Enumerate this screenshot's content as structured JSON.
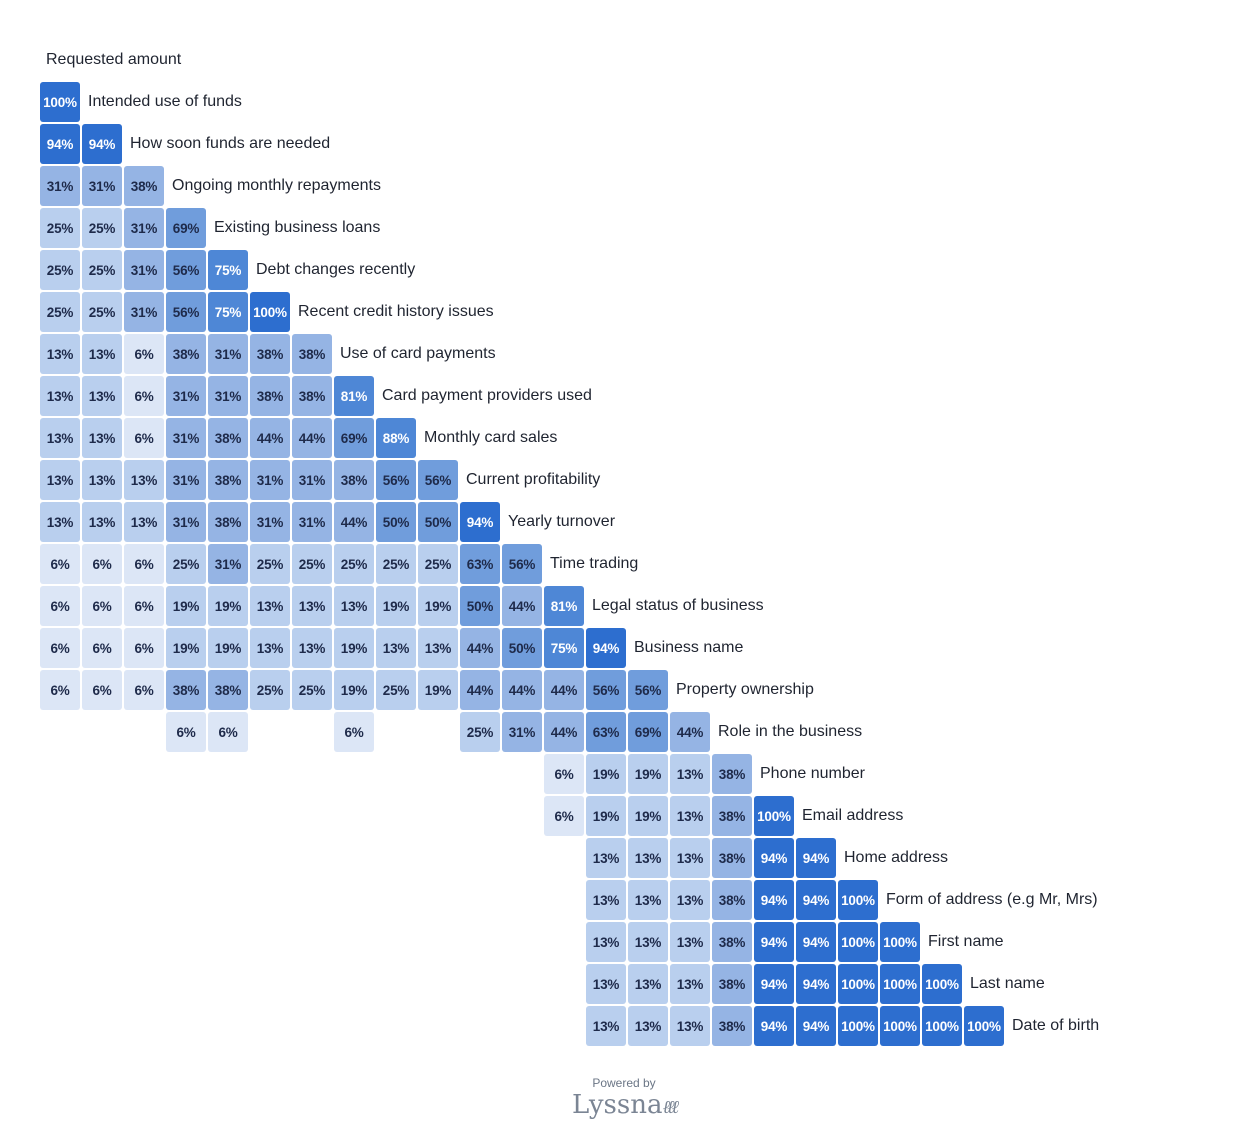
{
  "chart_data": {
    "type": "heatmap",
    "title": "",
    "unit": "%",
    "rows": [
      {
        "label": "Requested amount",
        "cells": []
      },
      {
        "label": "Intended use of funds",
        "cells": [
          100
        ]
      },
      {
        "label": "How soon funds are needed",
        "cells": [
          94,
          94
        ]
      },
      {
        "label": "Ongoing monthly repayments",
        "cells": [
          31,
          31,
          38
        ]
      },
      {
        "label": "Existing business loans",
        "cells": [
          25,
          25,
          31,
          69
        ]
      },
      {
        "label": "Debt changes recently",
        "cells": [
          25,
          25,
          31,
          56,
          75
        ]
      },
      {
        "label": "Recent credit history issues",
        "cells": [
          25,
          25,
          31,
          56,
          75,
          100
        ]
      },
      {
        "label": "Use of card payments",
        "cells": [
          13,
          13,
          6,
          38,
          31,
          38,
          38
        ]
      },
      {
        "label": "Card payment providers used",
        "cells": [
          13,
          13,
          6,
          31,
          31,
          38,
          38,
          81
        ]
      },
      {
        "label": "Monthly card sales",
        "cells": [
          13,
          13,
          6,
          31,
          38,
          44,
          44,
          69,
          88
        ]
      },
      {
        "label": "Current profitability",
        "cells": [
          13,
          13,
          13,
          31,
          38,
          31,
          31,
          38,
          56,
          56
        ]
      },
      {
        "label": "Yearly turnover",
        "cells": [
          13,
          13,
          13,
          31,
          38,
          31,
          31,
          44,
          50,
          50,
          94
        ]
      },
      {
        "label": "Time trading",
        "cells": [
          6,
          6,
          6,
          25,
          31,
          25,
          25,
          25,
          25,
          25,
          63,
          56
        ]
      },
      {
        "label": "Legal status of business",
        "cells": [
          6,
          6,
          6,
          19,
          19,
          13,
          13,
          13,
          19,
          19,
          50,
          44,
          81
        ]
      },
      {
        "label": "Business name",
        "cells": [
          6,
          6,
          6,
          19,
          19,
          13,
          13,
          19,
          13,
          13,
          44,
          50,
          75,
          94
        ]
      },
      {
        "label": "Property ownership",
        "cells": [
          6,
          6,
          6,
          38,
          38,
          25,
          25,
          19,
          25,
          19,
          44,
          44,
          44,
          56,
          56
        ]
      },
      {
        "label": "Role in the business",
        "cells": [
          null,
          null,
          null,
          6,
          6,
          null,
          null,
          6,
          null,
          null,
          25,
          31,
          44,
          63,
          69,
          44
        ]
      },
      {
        "label": "Phone number",
        "cells": [
          null,
          null,
          null,
          null,
          null,
          null,
          null,
          null,
          null,
          null,
          null,
          null,
          6,
          19,
          19,
          13,
          38
        ]
      },
      {
        "label": "Email address",
        "cells": [
          null,
          null,
          null,
          null,
          null,
          null,
          null,
          null,
          null,
          null,
          null,
          null,
          6,
          19,
          19,
          13,
          38,
          100
        ]
      },
      {
        "label": "Home address",
        "cells": [
          null,
          null,
          null,
          null,
          null,
          null,
          null,
          null,
          null,
          null,
          null,
          null,
          null,
          13,
          13,
          13,
          38,
          94,
          94
        ]
      },
      {
        "label": "Form of address (e.g Mr, Mrs)",
        "cells": [
          null,
          null,
          null,
          null,
          null,
          null,
          null,
          null,
          null,
          null,
          null,
          null,
          null,
          13,
          13,
          13,
          38,
          94,
          94,
          100
        ]
      },
      {
        "label": "First name",
        "cells": [
          null,
          null,
          null,
          null,
          null,
          null,
          null,
          null,
          null,
          null,
          null,
          null,
          null,
          13,
          13,
          13,
          38,
          94,
          94,
          100,
          100
        ]
      },
      {
        "label": "Last name",
        "cells": [
          null,
          null,
          null,
          null,
          null,
          null,
          null,
          null,
          null,
          null,
          null,
          null,
          null,
          13,
          13,
          13,
          38,
          94,
          94,
          100,
          100,
          100
        ]
      },
      {
        "label": "Date of birth",
        "cells": [
          null,
          null,
          null,
          null,
          null,
          null,
          null,
          null,
          null,
          null,
          null,
          null,
          null,
          13,
          13,
          13,
          38,
          94,
          94,
          100,
          100,
          100,
          100
        ]
      }
    ],
    "color_scale": [
      "#dce6f6",
      "#b9cfee",
      "#95b4e4",
      "#709ddc",
      "#4e87d6",
      "#2d6ecf"
    ]
  },
  "footer": {
    "powered_by": "Powered by",
    "brand": "Lyssna"
  }
}
